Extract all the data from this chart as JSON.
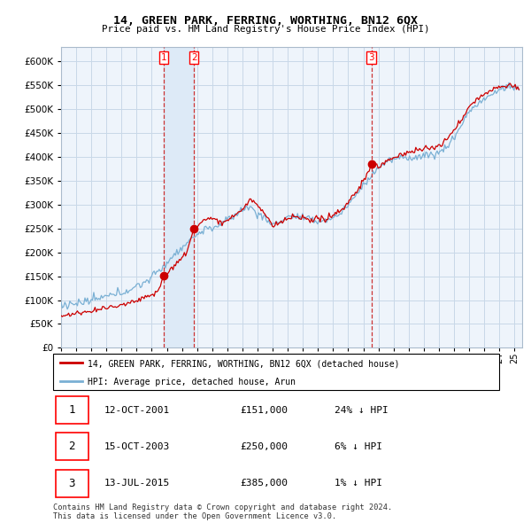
{
  "title": "14, GREEN PARK, FERRING, WORTHING, BN12 6QX",
  "subtitle": "Price paid vs. HM Land Registry's House Price Index (HPI)",
  "xlim_start": 1995.0,
  "xlim_end": 2025.5,
  "ylim": [
    0,
    630000
  ],
  "yticks": [
    0,
    50000,
    100000,
    150000,
    200000,
    250000,
    300000,
    350000,
    400000,
    450000,
    500000,
    550000,
    600000
  ],
  "grid_color": "#c8d8e8",
  "bg_color": "#eef4fb",
  "sale_dates": [
    2001.79,
    2003.79,
    2015.53
  ],
  "sale_prices": [
    151000,
    250000,
    385000
  ],
  "sale_labels": [
    "1",
    "2",
    "3"
  ],
  "shade_between": [
    2001.79,
    2003.79
  ],
  "table_data": [
    [
      "1",
      "12-OCT-2001",
      "£151,000",
      "24% ↓ HPI"
    ],
    [
      "2",
      "15-OCT-2003",
      "£250,000",
      "6% ↓ HPI"
    ],
    [
      "3",
      "13-JUL-2015",
      "£385,000",
      "1% ↓ HPI"
    ]
  ],
  "legend_line1": "14, GREEN PARK, FERRING, WORTHING, BN12 6QX (detached house)",
  "legend_line2": "HPI: Average price, detached house, Arun",
  "footnote": "Contains HM Land Registry data © Crown copyright and database right 2024.\nThis data is licensed under the Open Government Licence v3.0.",
  "hpi_color": "#7ab0d4",
  "price_color": "#cc0000",
  "vline_color": "#cc3333",
  "shade_color": "#ddeaf7"
}
